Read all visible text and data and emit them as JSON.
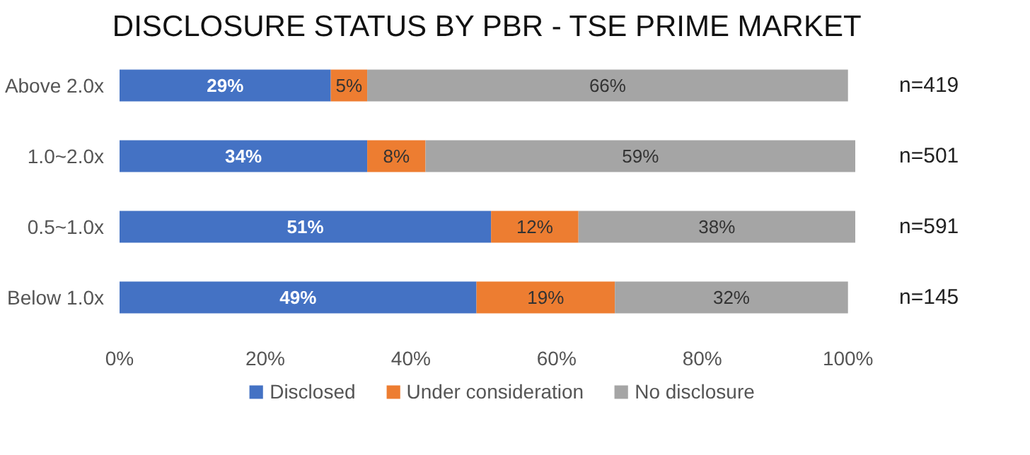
{
  "chart_data": {
    "type": "bar",
    "orientation": "horizontal",
    "stacked": true,
    "title": "DISCLOSURE STATUS BY PBR - TSE PRIME MARKET",
    "categories": [
      "Above 2.0x",
      "1.0~2.0x",
      "0.5~1.0x",
      "Below 1.0x"
    ],
    "series": [
      {
        "name": "Disclosed",
        "color": "#4472c4",
        "values": [
          29,
          34,
          51,
          49
        ],
        "value_labels": [
          "29%",
          "34%",
          "51%",
          "49%"
        ]
      },
      {
        "name": "Under consideration",
        "color": "#ed7d31",
        "values": [
          5,
          8,
          12,
          19
        ],
        "value_labels": [
          "5%",
          "8%",
          "12%",
          "19%"
        ]
      },
      {
        "name": "No disclosure",
        "color": "#a5a5a5",
        "values": [
          66,
          59,
          38,
          32
        ],
        "value_labels": [
          "66%",
          "59%",
          "38%",
          "32%"
        ]
      }
    ],
    "xlim": [
      0,
      101
    ],
    "xticks": [
      {
        "value": 0,
        "label": "0%"
      },
      {
        "value": 20,
        "label": "20%"
      },
      {
        "value": 40,
        "label": "40%"
      },
      {
        "value": 60,
        "label": "60%"
      },
      {
        "value": 80,
        "label": "80%"
      },
      {
        "value": 100,
        "label": "100%"
      }
    ],
    "grid": false,
    "legend": "bottom",
    "annotations": [
      "n=419",
      "n=501",
      "n=591",
      "n=145"
    ]
  }
}
